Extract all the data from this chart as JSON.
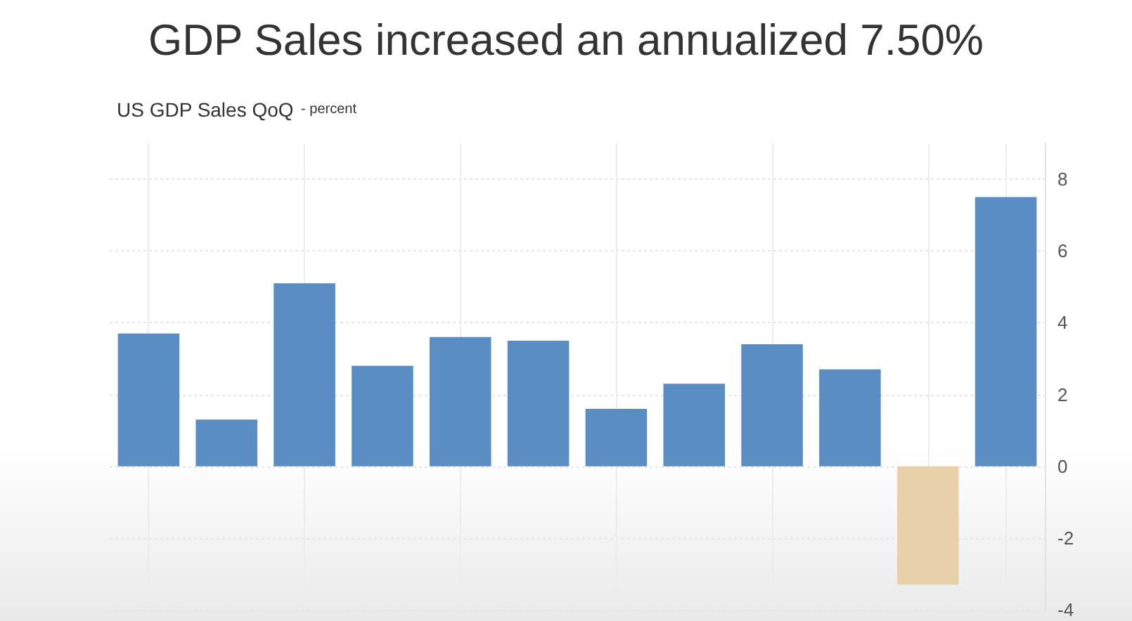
{
  "chart_data": {
    "type": "bar",
    "title": "GDP Sales increased an annualized 7.50%",
    "subtitle": "US GDP Sales QoQ",
    "ylabel": "- percent",
    "categories": [
      null,
      null,
      null,
      null,
      null,
      null,
      null,
      null,
      null,
      null,
      null,
      null
    ],
    "values": [
      3.7,
      1.3,
      5.1,
      2.8,
      3.6,
      3.5,
      1.6,
      2.3,
      3.4,
      2.7,
      -3.3,
      7.5
    ],
    "colors": [
      "#5b8dc5",
      "#5b8dc5",
      "#5b8dc5",
      "#5b8dc5",
      "#5b8dc5",
      "#5b8dc5",
      "#5b8dc5",
      "#5b8dc5",
      "#5b8dc5",
      "#5b8dc5",
      "#e8d0a8",
      "#5b8dc5"
    ],
    "ylim": [
      -4,
      9
    ],
    "yticks": [
      -4,
      -2,
      0,
      2,
      4,
      6,
      8
    ],
    "grid": true
  }
}
